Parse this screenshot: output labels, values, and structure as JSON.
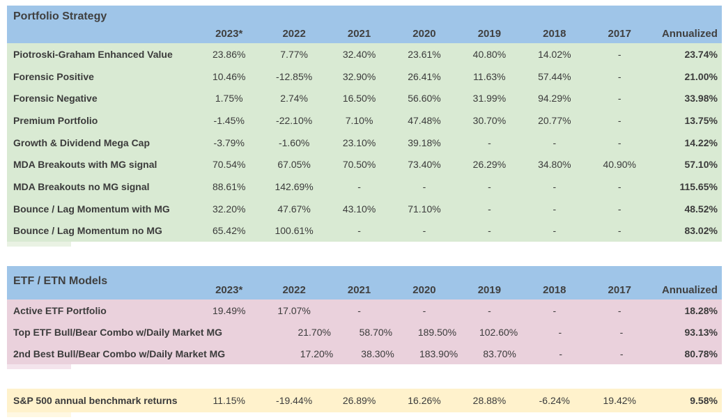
{
  "colors": {
    "header_blue": "#9fc5e8",
    "portfolio_green": "#d9ead3",
    "etf_pink": "#ead1dc",
    "benchmark_yellow": "#fff2cc",
    "text": "#3d3d3d"
  },
  "chart_data": [
    {
      "type": "table",
      "title": "Portfolio Strategy",
      "columns": [
        "2023*",
        "2022",
        "2021",
        "2020",
        "2019",
        "2018",
        "2017",
        "Annualized"
      ],
      "rows": [
        {
          "label": "Piotroski-Graham Enhanced Value",
          "values": [
            "23.86%",
            "7.77%",
            "32.40%",
            "23.61%",
            "40.80%",
            "14.02%",
            "-"
          ],
          "annualized": "23.74%"
        },
        {
          "label": "Forensic Positive",
          "values": [
            "10.46%",
            "-12.85%",
            "32.90%",
            "26.41%",
            "11.63%",
            "57.44%",
            "-"
          ],
          "annualized": "21.00%"
        },
        {
          "label": "Forensic Negative",
          "values": [
            "1.75%",
            "2.74%",
            "16.50%",
            "56.60%",
            "31.99%",
            "94.29%",
            "-"
          ],
          "annualized": "33.98%"
        },
        {
          "label": "Premium Portfolio",
          "values": [
            "-1.45%",
            "-22.10%",
            "7.10%",
            "47.48%",
            "30.70%",
            "20.77%",
            "-"
          ],
          "annualized": "13.75%"
        },
        {
          "label": "Growth & Dividend Mega Cap",
          "values": [
            "-3.79%",
            "-1.60%",
            "23.10%",
            "39.18%",
            "-",
            "-",
            "-"
          ],
          "annualized": "14.22%"
        },
        {
          "label": "MDA Breakouts with MG signal",
          "values": [
            "70.54%",
            "67.05%",
            "70.50%",
            "73.40%",
            "26.29%",
            "34.80%",
            "40.90%"
          ],
          "annualized": "57.10%"
        },
        {
          "label": "MDA Breakouts no MG signal",
          "values": [
            "88.61%",
            "142.69%",
            "-",
            "-",
            "-",
            "-",
            "-"
          ],
          "annualized": "115.65%"
        },
        {
          "label": "Bounce / Lag Momentum with MG",
          "values": [
            "32.20%",
            "47.67%",
            "43.10%",
            "71.10%",
            "-",
            "-",
            "-"
          ],
          "annualized": "48.52%"
        },
        {
          "label": "Bounce / Lag Momentum no MG",
          "values": [
            "65.42%",
            "100.61%",
            "-",
            "-",
            "-",
            "-",
            "-"
          ],
          "annualized": "83.02%"
        }
      ]
    },
    {
      "type": "table",
      "title": "ETF / ETN Models",
      "columns": [
        "2023*",
        "2022",
        "2021",
        "2020",
        "2019",
        "2018",
        "2017",
        "Annualized"
      ],
      "rows": [
        {
          "label": "Active ETF Portfolio",
          "values": [
            "19.49%",
            "17.07%",
            "-",
            "-",
            "-",
            "-",
            "-"
          ],
          "annualized": "18.28%"
        },
        {
          "label": "Top ETF Bull/Bear Combo w/Daily Market MG",
          "values": [
            "",
            "21.70%",
            "58.70%",
            "189.50%",
            "102.60%",
            "-",
            "-"
          ],
          "annualized": "93.13%"
        },
        {
          "label": "2nd Best Bull/Bear Combo w/Daily Market MG",
          "values": [
            "",
            "17.20%",
            "38.30%",
            "183.90%",
            "83.70%",
            "-",
            "-"
          ],
          "annualized": "80.78%"
        }
      ]
    },
    {
      "type": "table",
      "title": "",
      "rows": [
        {
          "label": "S&P 500 annual benchmark returns",
          "values": [
            "11.15%",
            "-19.44%",
            "26.89%",
            "16.26%",
            "28.88%",
            "-6.24%",
            "19.42%"
          ],
          "annualized": "9.58%"
        }
      ]
    }
  ]
}
